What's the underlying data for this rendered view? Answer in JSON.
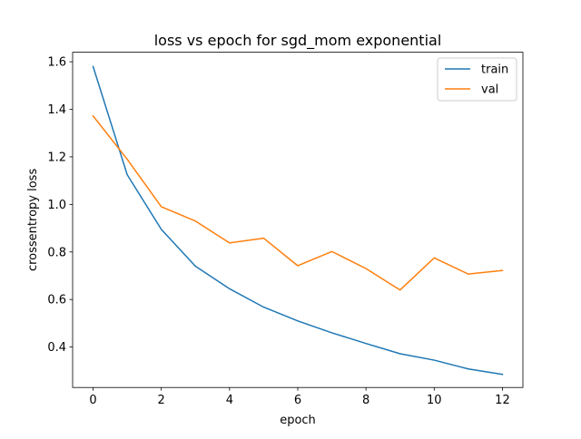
{
  "chart_data": {
    "type": "line",
    "title": "loss vs epoch for sgd_mom exponential",
    "xlabel": "epoch",
    "ylabel": "crossentropy loss",
    "x": [
      0,
      1,
      2,
      3,
      4,
      5,
      6,
      7,
      8,
      9,
      10,
      11,
      12
    ],
    "xlim": [
      -0.6,
      12.6
    ],
    "ylim": [
      0.23,
      1.64
    ],
    "xticks": [
      "0",
      "2",
      "4",
      "6",
      "8",
      "10",
      "12"
    ],
    "yticks": [
      "0.4",
      "0.6",
      "0.8",
      "1.0",
      "1.2",
      "1.4",
      "1.6"
    ],
    "grid": false,
    "legend_position": "top-right",
    "series": [
      {
        "name": "train",
        "color": "#1f77b4",
        "values": [
          1.58,
          1.125,
          0.895,
          0.74,
          0.645,
          0.568,
          0.51,
          0.46,
          0.415,
          0.372,
          0.345,
          0.308,
          0.285
        ]
      },
      {
        "name": "val",
        "color": "#ff7f0e",
        "values": [
          1.372,
          1.19,
          0.99,
          0.93,
          0.838,
          0.858,
          0.742,
          0.802,
          0.73,
          0.64,
          0.775,
          0.707,
          0.722
        ]
      }
    ]
  }
}
